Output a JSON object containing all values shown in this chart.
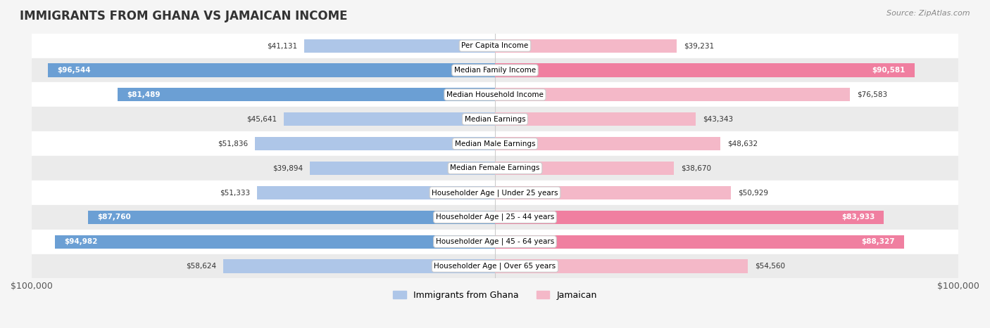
{
  "title": "IMMIGRANTS FROM GHANA VS JAMAICAN INCOME",
  "source": "Source: ZipAtlas.com",
  "categories": [
    "Per Capita Income",
    "Median Family Income",
    "Median Household Income",
    "Median Earnings",
    "Median Male Earnings",
    "Median Female Earnings",
    "Householder Age | Under 25 years",
    "Householder Age | 25 - 44 years",
    "Householder Age | 45 - 64 years",
    "Householder Age | Over 65 years"
  ],
  "ghana_values": [
    41131,
    96544,
    81489,
    45641,
    51836,
    39894,
    51333,
    87760,
    94982,
    58624
  ],
  "jamaican_values": [
    39231,
    90581,
    76583,
    43343,
    48632,
    38670,
    50929,
    83933,
    88327,
    54560
  ],
  "ghana_color_light": "#aec6e8",
  "ghana_color_dark": "#6b9fd4",
  "jamaican_color_light": "#f4b8c8",
  "jamaican_color_dark": "#f07fa0",
  "bar_height": 0.55,
  "xlim": 100000,
  "bg_color": "#f5f5f5",
  "row_colors": [
    "#ffffff",
    "#f0f0f0"
  ],
  "legend_ghana": "Immigrants from Ghana",
  "legend_jamaican": "Jamaican",
  "xlabel_left": "$100,000",
  "xlabel_right": "$100,000"
}
